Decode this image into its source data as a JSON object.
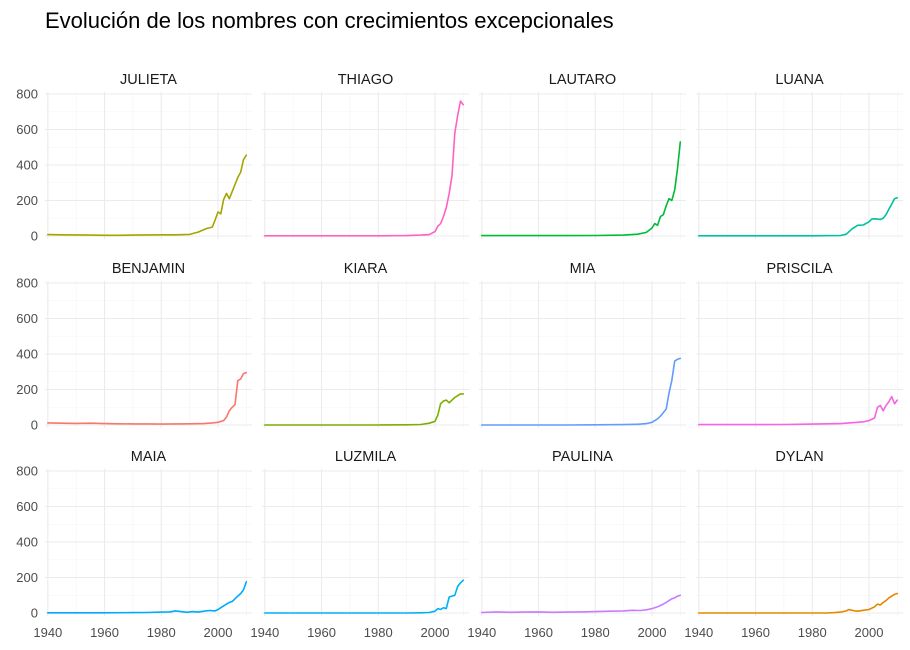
{
  "chart_data": {
    "type": "line",
    "title": "Evolución de los nombres con crecimientos excepcionales",
    "xlabel": "",
    "ylabel": "",
    "layout": "facet-grid 3x4",
    "xlim": [
      1939,
      2012
    ],
    "ylim": [
      -20,
      800
    ],
    "x_ticks": [
      "1940",
      "1960",
      "1980",
      "2000"
    ],
    "y_ticks": [
      "0",
      "200",
      "400",
      "600",
      "800"
    ],
    "grid": true,
    "facets": [
      {
        "name": "JULIETA",
        "color": "#A3A500",
        "x": [
          1940,
          1945,
          1950,
          1955,
          1960,
          1965,
          1970,
          1975,
          1980,
          1985,
          1990,
          1993,
          1996,
          1998,
          1999,
          2000,
          2001,
          2002,
          2003,
          2004,
          2005,
          2006,
          2007,
          2008,
          2009,
          2010
        ],
        "y": [
          8,
          7,
          6,
          5,
          4,
          4,
          5,
          6,
          7,
          7,
          9,
          22,
          42,
          50,
          90,
          135,
          125,
          205,
          240,
          210,
          250,
          290,
          330,
          360,
          430,
          455
        ]
      },
      {
        "name": "THIAGO",
        "color": "#FF61C3",
        "x": [
          1940,
          1950,
          1960,
          1970,
          1980,
          1990,
          1995,
          1998,
          2000,
          2001,
          2002,
          2003,
          2004,
          2005,
          2006,
          2007,
          2008,
          2009,
          2010
        ],
        "y": [
          1,
          1,
          1,
          1,
          1,
          2,
          5,
          8,
          25,
          55,
          70,
          110,
          160,
          240,
          340,
          580,
          680,
          760,
          740
        ]
      },
      {
        "name": "LAUTARO",
        "color": "#00BA38",
        "x": [
          1940,
          1950,
          1960,
          1970,
          1980,
          1990,
          1995,
          1998,
          2000,
          2001,
          2002,
          2003,
          2004,
          2005,
          2006,
          2007,
          2008,
          2009,
          2010
        ],
        "y": [
          2,
          2,
          2,
          2,
          3,
          5,
          10,
          20,
          45,
          70,
          60,
          110,
          120,
          170,
          210,
          200,
          260,
          380,
          530
        ]
      },
      {
        "name": "LUANA",
        "color": "#00C19F",
        "x": [
          1940,
          1950,
          1960,
          1970,
          1980,
          1990,
          1992,
          1994,
          1996,
          1998,
          2000,
          2001,
          2002,
          2003,
          2004,
          2005,
          2006,
          2007,
          2008,
          2009,
          2010
        ],
        "y": [
          1,
          1,
          1,
          1,
          1,
          3,
          10,
          40,
          60,
          62,
          80,
          95,
          97,
          95,
          93,
          100,
          120,
          150,
          180,
          210,
          215
        ]
      },
      {
        "name": "BENJAMIN",
        "color": "#F8766D",
        "x": [
          1940,
          1945,
          1950,
          1955,
          1960,
          1965,
          1970,
          1975,
          1980,
          1985,
          1990,
          1995,
          1998,
          2000,
          2002,
          2003,
          2004,
          2005,
          2006,
          2007,
          2008,
          2009,
          2010
        ],
        "y": [
          12,
          10,
          9,
          10,
          8,
          7,
          6,
          6,
          5,
          6,
          7,
          8,
          12,
          15,
          25,
          45,
          80,
          100,
          115,
          250,
          260,
          290,
          295
        ]
      },
      {
        "name": "KIARA",
        "color": "#7CAE00",
        "x": [
          1940,
          1950,
          1960,
          1970,
          1980,
          1990,
          1995,
          1998,
          2000,
          2001,
          2002,
          2003,
          2004,
          2005,
          2006,
          2007,
          2008,
          2009,
          2010
        ],
        "y": [
          0,
          0,
          0,
          0,
          0,
          1,
          3,
          10,
          20,
          55,
          120,
          135,
          140,
          125,
          140,
          155,
          165,
          175,
          175
        ]
      },
      {
        "name": "MIA",
        "color": "#619CFF",
        "x": [
          1940,
          1950,
          1960,
          1970,
          1980,
          1990,
          1995,
          1998,
          2000,
          2002,
          2003,
          2004,
          2005,
          2006,
          2007,
          2008,
          2009,
          2010
        ],
        "y": [
          0,
          0,
          0,
          0,
          1,
          2,
          4,
          8,
          15,
          35,
          50,
          70,
          90,
          180,
          250,
          360,
          370,
          375
        ]
      },
      {
        "name": "PRISCILA",
        "color": "#F564E3",
        "x": [
          1940,
          1950,
          1960,
          1970,
          1980,
          1990,
          1993,
          1996,
          1998,
          2000,
          2002,
          2003,
          2004,
          2005,
          2006,
          2007,
          2008,
          2009,
          2010
        ],
        "y": [
          2,
          2,
          2,
          3,
          5,
          8,
          12,
          15,
          18,
          25,
          40,
          100,
          110,
          80,
          110,
          130,
          160,
          120,
          140
        ]
      },
      {
        "name": "MAIA",
        "color": "#00A9FF",
        "x": [
          1940,
          1950,
          1960,
          1970,
          1975,
          1980,
          1983,
          1985,
          1987,
          1989,
          1991,
          1993,
          1995,
          1997,
          1999,
          2000,
          2001,
          2002,
          2003,
          2004,
          2005,
          2006,
          2007,
          2008,
          2009,
          2010
        ],
        "y": [
          1,
          1,
          1,
          2,
          3,
          5,
          6,
          12,
          8,
          4,
          8,
          5,
          10,
          14,
          12,
          20,
          30,
          40,
          50,
          60,
          65,
          80,
          95,
          110,
          130,
          175
        ]
      },
      {
        "name": "LUZMILA",
        "color": "#00B0F6",
        "x": [
          1940,
          1950,
          1960,
          1970,
          1980,
          1990,
          1995,
          1998,
          2000,
          2001,
          2002,
          2003,
          2004,
          2005,
          2006,
          2007,
          2008,
          2009,
          2010
        ],
        "y": [
          0,
          0,
          0,
          0,
          0,
          0,
          1,
          3,
          10,
          25,
          20,
          30,
          25,
          90,
          95,
          100,
          150,
          170,
          185
        ]
      },
      {
        "name": "PAULINA",
        "color": "#C77CFF",
        "x": [
          1940,
          1945,
          1950,
          1955,
          1960,
          1965,
          1970,
          1975,
          1980,
          1985,
          1990,
          1993,
          1996,
          1998,
          2000,
          2002,
          2004,
          2005,
          2006,
          2007,
          2008,
          2009,
          2010
        ],
        "y": [
          3,
          6,
          4,
          5,
          6,
          4,
          5,
          6,
          8,
          10,
          12,
          15,
          14,
          18,
          25,
          35,
          50,
          60,
          70,
          80,
          85,
          95,
          100
        ]
      },
      {
        "name": "DYLAN",
        "color": "#E58700",
        "x": [
          1940,
          1950,
          1960,
          1970,
          1980,
          1985,
          1988,
          1990,
          1992,
          1993,
          1994,
          1995,
          1996,
          1998,
          2000,
          2002,
          2003,
          2004,
          2005,
          2006,
          2007,
          2008,
          2009,
          2010
        ],
        "y": [
          0,
          0,
          0,
          0,
          0,
          0,
          2,
          5,
          12,
          20,
          15,
          12,
          10,
          15,
          20,
          35,
          50,
          45,
          60,
          70,
          85,
          95,
          105,
          110
        ]
      }
    ]
  }
}
